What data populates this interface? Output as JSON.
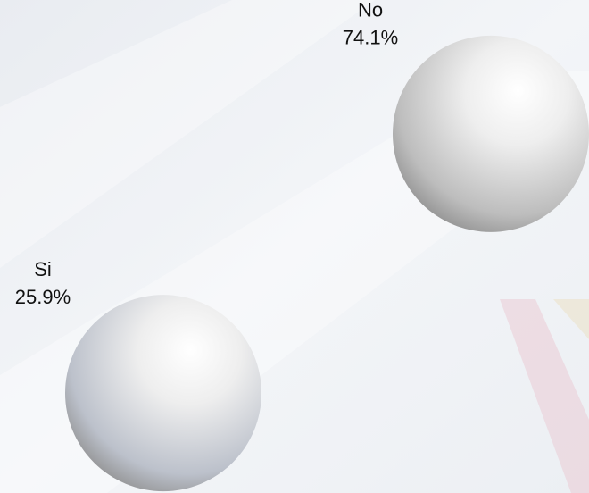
{
  "chart_data": {
    "type": "bubble",
    "categories": [
      "No",
      "Si"
    ],
    "values": [
      74.1,
      25.9
    ],
    "value_labels": [
      "74.1%",
      "25.9%"
    ],
    "colors": [
      "#bdbdbd",
      "#bcc1cb"
    ]
  }
}
